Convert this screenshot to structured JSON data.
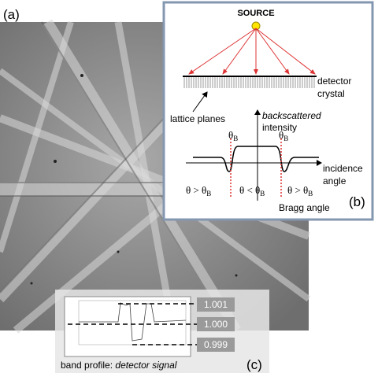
{
  "panels": {
    "a": "(a)",
    "b": "(b)",
    "c": "(c)"
  },
  "diagram": {
    "source": "SOURCE",
    "detector": [
      "detector",
      "crystal"
    ],
    "lattice_planes": "lattice planes",
    "intensity": {
      "italic": "backscattered",
      "plain": "intensity"
    },
    "theta_b": {
      "main": "θ",
      "sub": "B"
    },
    "regions": [
      {
        "main": "θ > θ",
        "sub": "B"
      },
      {
        "main": "θ < θ",
        "sub": "B"
      },
      {
        "main": "θ > θ",
        "sub": "B"
      }
    ],
    "incidence": [
      "incidence",
      "angle"
    ],
    "bragg": "Bragg angle"
  },
  "profile": {
    "levels": [
      "1.001",
      "1.000",
      "0.999"
    ],
    "caption": {
      "plain": "band profile: ",
      "italic": "detector signal"
    }
  }
}
